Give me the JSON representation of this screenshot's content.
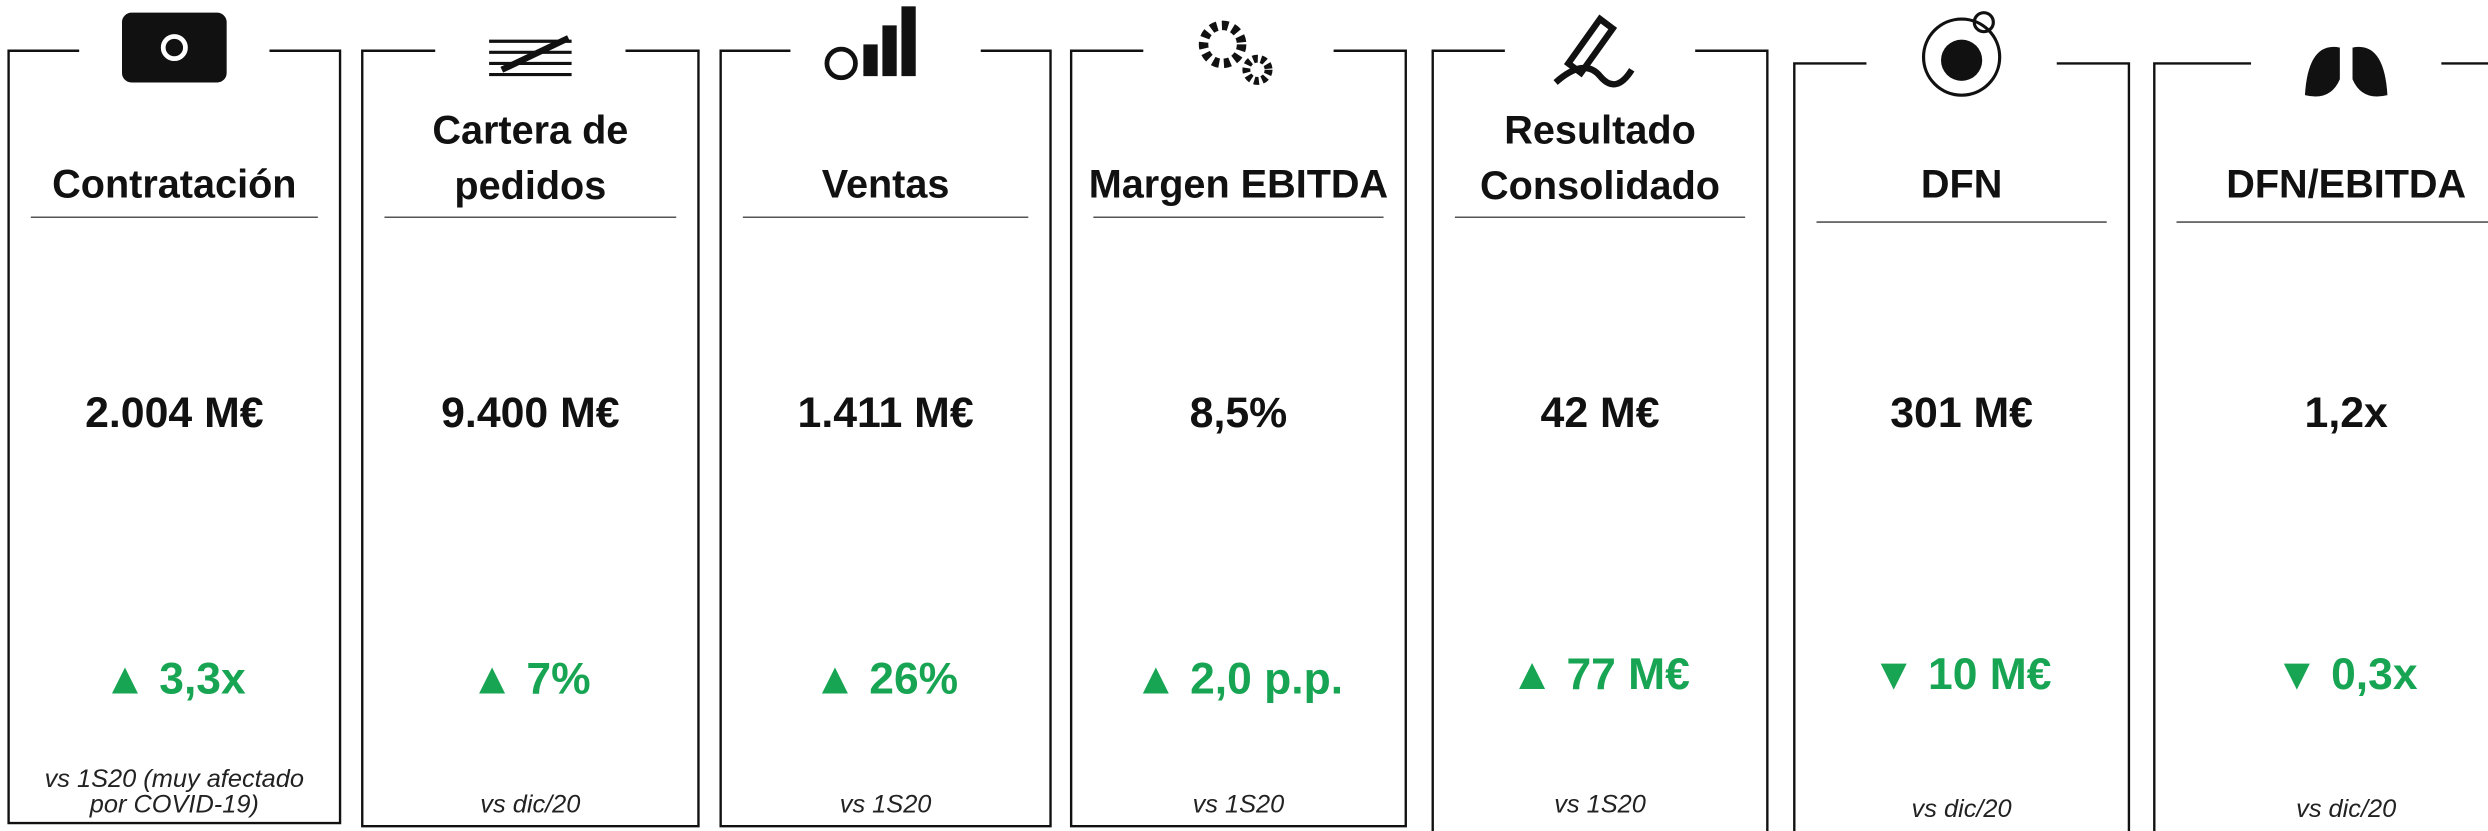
{
  "cards": [
    {
      "title": [
        "Contratación"
      ],
      "value": "2.004 M€",
      "change": "▲  3,3x",
      "note": [
        "vs 1S20 (muy afectado",
        "por COVID-19)"
      ]
    },
    {
      "title": [
        "Cartera de",
        "pedidos"
      ],
      "value": "9.400 M€",
      "change": "▲  7%",
      "note": [
        "vs dic/20"
      ]
    },
    {
      "title": [
        "Ventas"
      ],
      "value": "1.411 M€",
      "change": "▲  26%",
      "note": [
        "vs 1S20"
      ]
    },
    {
      "title": [
        "Margen EBITDA"
      ],
      "value": "8,5%",
      "change": "▲  2,0 p.p.",
      "note": [
        "vs 1S20"
      ]
    },
    {
      "title": [
        "Resultado",
        "Consolidado"
      ],
      "value": "42 M€",
      "change": "▲  77 M€",
      "note": [
        "vs 1S20"
      ]
    },
    {
      "title": [
        "DFN"
      ],
      "value": "301 M€",
      "change": "▼ 10 M€",
      "note": [
        "vs dic/20"
      ]
    },
    {
      "title": [
        "DFN/EBITDA"
      ],
      "value": "1,2x",
      "change": "▼ 0,3x",
      "note": [
        "vs dic/20"
      ]
    }
  ]
}
